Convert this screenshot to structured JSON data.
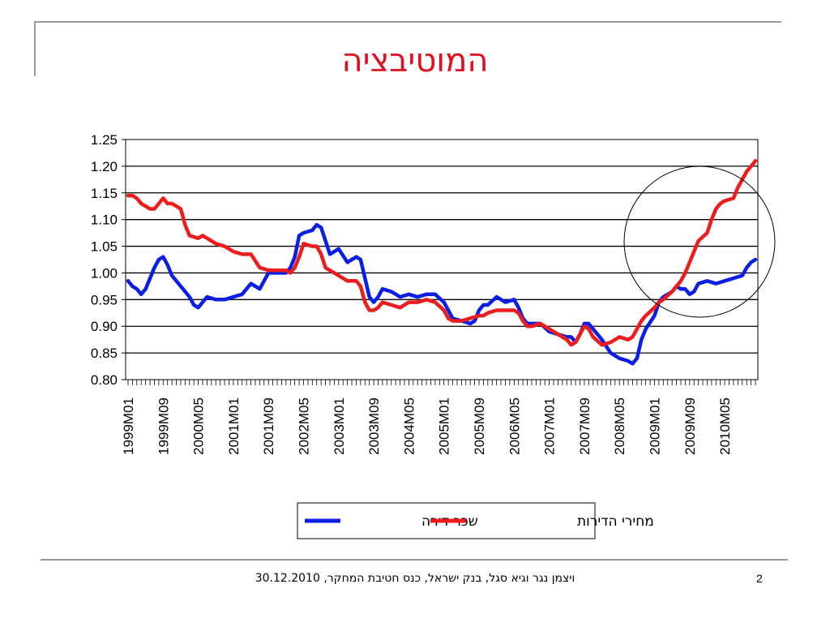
{
  "slide": {
    "title": "המוטיבציה",
    "footer": "ויצמן נגר וגיא סגל, בנק ישראל, כנס חטיבת המחקר, 30.12.2010",
    "page_number": "2"
  },
  "chart_data": {
    "type": "line",
    "title": "",
    "xlabel": "",
    "ylabel": "",
    "ylim": [
      0.8,
      1.25
    ],
    "yticks": [
      "1.25",
      "1.20",
      "1.15",
      "1.10",
      "1.05",
      "1.00",
      "0.95",
      "0.90",
      "0.85",
      "0.80"
    ],
    "x_tick_labels": [
      "1999M01",
      "1999M09",
      "2000M05",
      "2001M01",
      "2001M09",
      "2002M05",
      "2003M01",
      "2003M09",
      "2004M05",
      "2005M01",
      "2005M09",
      "2006M05",
      "2007M01",
      "2007M09",
      "2008M05",
      "2009M01",
      "2009M09",
      "2010M05"
    ],
    "grid": "horizontal",
    "legend_placement": "bottom",
    "annotation": "circle around 2009–2010 divergence",
    "series": [
      {
        "name": "שכר דירה",
        "color": "#0a1ee6",
        "points": [
          [
            "1999-01",
            0.985
          ],
          [
            "1999-02",
            0.975
          ],
          [
            "1999-03",
            0.97
          ],
          [
            "1999-04",
            0.96
          ],
          [
            "1999-05",
            0.97
          ],
          [
            "1999-06",
            0.99
          ],
          [
            "1999-07",
            1.01
          ],
          [
            "1999-08",
            1.025
          ],
          [
            "1999-09",
            1.03
          ],
          [
            "1999-10",
            1.015
          ],
          [
            "1999-11",
            0.995
          ],
          [
            "2000-01",
            0.975
          ],
          [
            "2000-03",
            0.955
          ],
          [
            "2000-04",
            0.94
          ],
          [
            "2000-05",
            0.935
          ],
          [
            "2000-07",
            0.955
          ],
          [
            "2000-09",
            0.95
          ],
          [
            "2000-11",
            0.95
          ],
          [
            "2001-01",
            0.955
          ],
          [
            "2001-03",
            0.96
          ],
          [
            "2001-05",
            0.98
          ],
          [
            "2001-07",
            0.97
          ],
          [
            "2001-09",
            1.0
          ],
          [
            "2001-11",
            1.0
          ],
          [
            "2002-01",
            1.0
          ],
          [
            "2002-02",
            1.01
          ],
          [
            "2002-03",
            1.03
          ],
          [
            "2002-04",
            1.07
          ],
          [
            "2002-05",
            1.075
          ],
          [
            "2002-07",
            1.08
          ],
          [
            "2002-08",
            1.09
          ],
          [
            "2002-09",
            1.085
          ],
          [
            "2002-10",
            1.06
          ],
          [
            "2002-11",
            1.035
          ],
          [
            "2003-01",
            1.045
          ],
          [
            "2003-03",
            1.02
          ],
          [
            "2003-05",
            1.03
          ],
          [
            "2003-06",
            1.025
          ],
          [
            "2003-07",
            0.99
          ],
          [
            "2003-08",
            0.955
          ],
          [
            "2003-09",
            0.945
          ],
          [
            "2003-10",
            0.955
          ],
          [
            "2003-11",
            0.97
          ],
          [
            "2004-01",
            0.965
          ],
          [
            "2004-03",
            0.955
          ],
          [
            "2004-05",
            0.96
          ],
          [
            "2004-07",
            0.955
          ],
          [
            "2004-09",
            0.96
          ],
          [
            "2004-11",
            0.96
          ],
          [
            "2005-01",
            0.945
          ],
          [
            "2005-02",
            0.93
          ],
          [
            "2005-03",
            0.915
          ],
          [
            "2005-05",
            0.91
          ],
          [
            "2005-07",
            0.905
          ],
          [
            "2005-08",
            0.91
          ],
          [
            "2005-09",
            0.93
          ],
          [
            "2005-10",
            0.94
          ],
          [
            "2005-11",
            0.94
          ],
          [
            "2006-01",
            0.955
          ],
          [
            "2006-03",
            0.945
          ],
          [
            "2006-05",
            0.95
          ],
          [
            "2006-06",
            0.935
          ],
          [
            "2006-07",
            0.915
          ],
          [
            "2006-08",
            0.905
          ],
          [
            "2006-09",
            0.905
          ],
          [
            "2006-11",
            0.905
          ],
          [
            "2007-01",
            0.89
          ],
          [
            "2007-03",
            0.885
          ],
          [
            "2007-05",
            0.88
          ],
          [
            "2007-06",
            0.88
          ],
          [
            "2007-07",
            0.87
          ],
          [
            "2007-08",
            0.885
          ],
          [
            "2007-09",
            0.905
          ],
          [
            "2007-10",
            0.905
          ],
          [
            "2007-11",
            0.895
          ],
          [
            "2008-01",
            0.875
          ],
          [
            "2008-03",
            0.85
          ],
          [
            "2008-05",
            0.84
          ],
          [
            "2008-07",
            0.835
          ],
          [
            "2008-08",
            0.83
          ],
          [
            "2008-09",
            0.84
          ],
          [
            "2008-10",
            0.875
          ],
          [
            "2008-11",
            0.895
          ],
          [
            "2009-01",
            0.92
          ],
          [
            "2009-02",
            0.945
          ],
          [
            "2009-03",
            0.955
          ],
          [
            "2009-05",
            0.965
          ],
          [
            "2009-06",
            0.975
          ],
          [
            "2009-07",
            0.97
          ],
          [
            "2009-08",
            0.97
          ],
          [
            "2009-09",
            0.96
          ],
          [
            "2009-10",
            0.965
          ],
          [
            "2009-11",
            0.98
          ],
          [
            "2010-01",
            0.985
          ],
          [
            "2010-03",
            0.98
          ],
          [
            "2010-05",
            0.985
          ],
          [
            "2010-07",
            0.99
          ],
          [
            "2010-09",
            0.995
          ],
          [
            "2010-10",
            1.01
          ],
          [
            "2010-11",
            1.02
          ],
          [
            "2010-12",
            1.025
          ]
        ]
      },
      {
        "name": "מחירי הדירות",
        "color": "#ee1c1c",
        "points": [
          [
            "1999-01",
            1.145
          ],
          [
            "1999-02",
            1.145
          ],
          [
            "1999-03",
            1.14
          ],
          [
            "1999-04",
            1.13
          ],
          [
            "1999-05",
            1.125
          ],
          [
            "1999-06",
            1.12
          ],
          [
            "1999-07",
            1.12
          ],
          [
            "1999-08",
            1.13
          ],
          [
            "1999-09",
            1.14
          ],
          [
            "1999-10",
            1.13
          ],
          [
            "1999-11",
            1.13
          ],
          [
            "2000-01",
            1.12
          ],
          [
            "2000-02",
            1.09
          ],
          [
            "2000-03",
            1.07
          ],
          [
            "2000-05",
            1.065
          ],
          [
            "2000-06",
            1.07
          ],
          [
            "2000-07",
            1.065
          ],
          [
            "2000-09",
            1.055
          ],
          [
            "2000-11",
            1.05
          ],
          [
            "2001-01",
            1.04
          ],
          [
            "2001-03",
            1.035
          ],
          [
            "2001-05",
            1.035
          ],
          [
            "2001-07",
            1.01
          ],
          [
            "2001-09",
            1.005
          ],
          [
            "2001-11",
            1.005
          ],
          [
            "2002-01",
            1.005
          ],
          [
            "2002-02",
            1.0
          ],
          [
            "2002-03",
            1.01
          ],
          [
            "2002-04",
            1.03
          ],
          [
            "2002-05",
            1.055
          ],
          [
            "2002-07",
            1.05
          ],
          [
            "2002-08",
            1.05
          ],
          [
            "2002-09",
            1.035
          ],
          [
            "2002-10",
            1.01
          ],
          [
            "2002-11",
            1.005
          ],
          [
            "2003-01",
            0.995
          ],
          [
            "2003-03",
            0.985
          ],
          [
            "2003-05",
            0.985
          ],
          [
            "2003-06",
            0.975
          ],
          [
            "2003-07",
            0.945
          ],
          [
            "2003-08",
            0.93
          ],
          [
            "2003-09",
            0.93
          ],
          [
            "2003-10",
            0.935
          ],
          [
            "2003-11",
            0.945
          ],
          [
            "2004-01",
            0.94
          ],
          [
            "2004-03",
            0.935
          ],
          [
            "2004-05",
            0.945
          ],
          [
            "2004-07",
            0.945
          ],
          [
            "2004-09",
            0.95
          ],
          [
            "2004-11",
            0.945
          ],
          [
            "2005-01",
            0.93
          ],
          [
            "2005-02",
            0.915
          ],
          [
            "2005-03",
            0.91
          ],
          [
            "2005-05",
            0.91
          ],
          [
            "2005-07",
            0.915
          ],
          [
            "2005-09",
            0.92
          ],
          [
            "2005-10",
            0.92
          ],
          [
            "2005-11",
            0.925
          ],
          [
            "2006-01",
            0.93
          ],
          [
            "2006-03",
            0.93
          ],
          [
            "2006-05",
            0.93
          ],
          [
            "2006-06",
            0.925
          ],
          [
            "2006-07",
            0.91
          ],
          [
            "2006-08",
            0.9
          ],
          [
            "2006-09",
            0.9
          ],
          [
            "2006-11",
            0.905
          ],
          [
            "2007-01",
            0.895
          ],
          [
            "2007-03",
            0.885
          ],
          [
            "2007-05",
            0.875
          ],
          [
            "2007-06",
            0.865
          ],
          [
            "2007-07",
            0.87
          ],
          [
            "2007-08",
            0.885
          ],
          [
            "2007-09",
            0.9
          ],
          [
            "2007-10",
            0.895
          ],
          [
            "2007-11",
            0.88
          ],
          [
            "2008-01",
            0.865
          ],
          [
            "2008-03",
            0.87
          ],
          [
            "2008-05",
            0.88
          ],
          [
            "2008-07",
            0.875
          ],
          [
            "2008-08",
            0.88
          ],
          [
            "2008-09",
            0.895
          ],
          [
            "2008-10",
            0.91
          ],
          [
            "2008-11",
            0.92
          ],
          [
            "2009-01",
            0.935
          ],
          [
            "2009-02",
            0.945
          ],
          [
            "2009-03",
            0.95
          ],
          [
            "2009-05",
            0.965
          ],
          [
            "2009-06",
            0.975
          ],
          [
            "2009-07",
            0.985
          ],
          [
            "2009-08",
            1.0
          ],
          [
            "2009-09",
            1.02
          ],
          [
            "2009-10",
            1.04
          ],
          [
            "2009-11",
            1.06
          ],
          [
            "2010-01",
            1.075
          ],
          [
            "2010-02",
            1.1
          ],
          [
            "2010-03",
            1.12
          ],
          [
            "2010-04",
            1.13
          ],
          [
            "2010-05",
            1.135
          ],
          [
            "2010-07",
            1.14
          ],
          [
            "2010-08",
            1.16
          ],
          [
            "2010-09",
            1.175
          ],
          [
            "2010-10",
            1.19
          ],
          [
            "2010-11",
            1.2
          ],
          [
            "2010-12",
            1.21
          ]
        ]
      }
    ]
  }
}
